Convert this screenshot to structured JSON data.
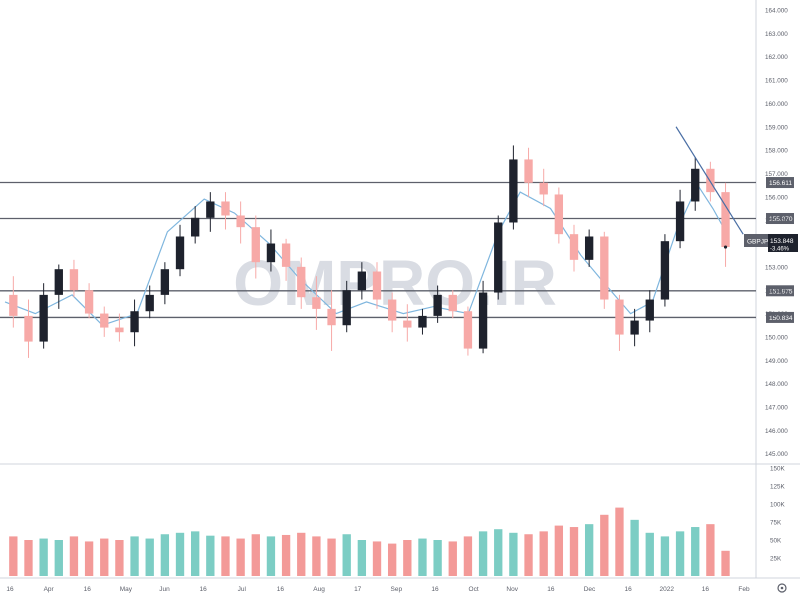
{
  "watermark": "OMPRO.IR",
  "symbol_badge": {
    "symbol": "GBPJPY",
    "price": "153.848",
    "change": "-3.46%"
  },
  "colors": {
    "up": "#1e222d",
    "down": "#f7a9a7",
    "ma": "#7fb6de",
    "trendline": "#4a6fa5",
    "hline": "#5d606b",
    "volume_up": "#7ccdc4",
    "volume_down": "#f39a98",
    "axis_text": "#5d606b",
    "label_bg": "#5d606b",
    "label_text": "#ffffff",
    "watermark": "#d9dce3"
  },
  "axes": {
    "price_ticks": [
      "164.000",
      "163.000",
      "162.000",
      "161.000",
      "160.000",
      "159.000",
      "158.000",
      "157.000",
      "156.000",
      "155.000",
      "154.000",
      "153.000",
      "152.000",
      "151.000",
      "150.000",
      "149.000",
      "148.000",
      "147.000",
      "146.000",
      "145.000"
    ],
    "volume_ticks": [
      "150K",
      "125K",
      "100K",
      "75K",
      "50K",
      "25K"
    ],
    "time_ticks": [
      "16",
      "Apr",
      "16",
      "May",
      "Jun",
      "16",
      "Jul",
      "16",
      "Aug",
      "17",
      "Sep",
      "16",
      "Oct",
      "Nov",
      "16",
      "Dec",
      "16",
      "2022",
      "16",
      "Feb"
    ]
  },
  "levels": [
    {
      "value": 156.611,
      "label": "156.611"
    },
    {
      "value": 155.07,
      "label": "155.070"
    },
    {
      "value": 151.975,
      "label": "151.975"
    },
    {
      "value": 150.834,
      "label": "150.834"
    }
  ],
  "icons": {
    "settings": "settings-icon"
  },
  "chart_data": {
    "type": "candlestick",
    "title": "",
    "symbol": "GBPJPY",
    "ylim": [
      144.6,
      164.0
    ],
    "volume_ylim": [
      0,
      150000
    ],
    "x_range": [
      "2021-03-01",
      "2022-02-10"
    ],
    "last_price": 153.848,
    "change_percent": -3.46,
    "horizontal_levels": [
      156.611,
      155.07,
      151.975,
      150.834
    ],
    "trendline": {
      "from": [
        "2022-01-05",
        159.0
      ],
      "to": [
        "2022-02-05",
        154.4
      ]
    },
    "moving_average_waypoints": [
      {
        "date": "2021-03-01",
        "value": 151.5
      },
      {
        "date": "2021-03-15",
        "value": 151.0
      },
      {
        "date": "2021-04-01",
        "value": 151.8
      },
      {
        "date": "2021-04-15",
        "value": 150.5
      },
      {
        "date": "2021-05-01",
        "value": 151.0
      },
      {
        "date": "2021-05-15",
        "value": 154.5
      },
      {
        "date": "2021-06-01",
        "value": 155.9
      },
      {
        "date": "2021-06-15",
        "value": 155.3
      },
      {
        "date": "2021-07-01",
        "value": 154.0
      },
      {
        "date": "2021-07-15",
        "value": 152.5
      },
      {
        "date": "2021-08-01",
        "value": 151.0
      },
      {
        "date": "2021-08-15",
        "value": 151.5
      },
      {
        "date": "2021-09-01",
        "value": 151.0
      },
      {
        "date": "2021-09-15",
        "value": 151.3
      },
      {
        "date": "2021-10-01",
        "value": 151.0
      },
      {
        "date": "2021-10-15",
        "value": 154.5
      },
      {
        "date": "2021-10-25",
        "value": 156.2
      },
      {
        "date": "2021-11-08",
        "value": 155.5
      },
      {
        "date": "2021-11-22",
        "value": 153.5
      },
      {
        "date": "2021-12-01",
        "value": 152.5
      },
      {
        "date": "2021-12-15",
        "value": 151.0
      },
      {
        "date": "2021-12-25",
        "value": 151.5
      },
      {
        "date": "2022-01-05",
        "value": 154.5
      },
      {
        "date": "2022-01-15",
        "value": 156.5
      },
      {
        "date": "2022-01-22",
        "value": 155.5
      },
      {
        "date": "2022-01-28",
        "value": 154.5
      }
    ],
    "ohlc_weekly_estimate": [
      {
        "date": "2021-03-01",
        "open": 151.8,
        "high": 152.6,
        "low": 150.4,
        "close": 150.9
      },
      {
        "date": "2021-03-08",
        "open": 150.9,
        "high": 151.6,
        "low": 149.1,
        "close": 149.8
      },
      {
        "date": "2021-03-15",
        "open": 149.8,
        "high": 152.3,
        "low": 149.5,
        "close": 151.8
      },
      {
        "date": "2021-03-22",
        "open": 151.8,
        "high": 153.1,
        "low": 151.2,
        "close": 152.9
      },
      {
        "date": "2021-03-29",
        "open": 152.9,
        "high": 153.3,
        "low": 151.7,
        "close": 152.0
      },
      {
        "date": "2021-04-05",
        "open": 152.0,
        "high": 152.3,
        "low": 150.8,
        "close": 151.0
      },
      {
        "date": "2021-04-12",
        "open": 151.0,
        "high": 151.3,
        "low": 150.0,
        "close": 150.4
      },
      {
        "date": "2021-04-19",
        "open": 150.4,
        "high": 151.0,
        "low": 149.8,
        "close": 150.2
      },
      {
        "date": "2021-04-26",
        "open": 150.2,
        "high": 151.6,
        "low": 149.6,
        "close": 151.1
      },
      {
        "date": "2021-05-03",
        "open": 151.1,
        "high": 152.2,
        "low": 150.8,
        "close": 151.8
      },
      {
        "date": "2021-05-10",
        "open": 151.8,
        "high": 153.2,
        "low": 151.4,
        "close": 152.9
      },
      {
        "date": "2021-05-17",
        "open": 152.9,
        "high": 154.8,
        "low": 152.6,
        "close": 154.3
      },
      {
        "date": "2021-05-24",
        "open": 154.3,
        "high": 155.6,
        "low": 154.0,
        "close": 155.1
      },
      {
        "date": "2021-05-31",
        "open": 155.1,
        "high": 156.2,
        "low": 154.5,
        "close": 155.8
      },
      {
        "date": "2021-06-07",
        "open": 155.8,
        "high": 156.2,
        "low": 154.6,
        "close": 155.2
      },
      {
        "date": "2021-06-14",
        "open": 155.2,
        "high": 155.8,
        "low": 154.0,
        "close": 154.7
      },
      {
        "date": "2021-06-21",
        "open": 154.7,
        "high": 155.2,
        "low": 152.5,
        "close": 153.2
      },
      {
        "date": "2021-06-28",
        "open": 153.2,
        "high": 154.6,
        "low": 152.8,
        "close": 154.0
      },
      {
        "date": "2021-07-05",
        "open": 154.0,
        "high": 154.2,
        "low": 152.4,
        "close": 153.0
      },
      {
        "date": "2021-07-12",
        "open": 153.0,
        "high": 153.4,
        "low": 151.2,
        "close": 151.7
      },
      {
        "date": "2021-07-19",
        "open": 151.7,
        "high": 152.6,
        "low": 150.3,
        "close": 151.2
      },
      {
        "date": "2021-07-26",
        "open": 151.2,
        "high": 152.0,
        "low": 149.4,
        "close": 150.5
      },
      {
        "date": "2021-08-02",
        "open": 150.5,
        "high": 152.4,
        "low": 150.2,
        "close": 152.0
      },
      {
        "date": "2021-08-09",
        "open": 152.0,
        "high": 153.2,
        "low": 151.6,
        "close": 152.8
      },
      {
        "date": "2021-08-16",
        "open": 152.8,
        "high": 153.2,
        "low": 151.2,
        "close": 151.6
      },
      {
        "date": "2021-08-23",
        "open": 151.6,
        "high": 151.9,
        "low": 150.2,
        "close": 150.7
      },
      {
        "date": "2021-08-30",
        "open": 150.7,
        "high": 151.4,
        "low": 149.8,
        "close": 150.4
      },
      {
        "date": "2021-09-06",
        "open": 150.4,
        "high": 151.2,
        "low": 150.1,
        "close": 150.9
      },
      {
        "date": "2021-09-13",
        "open": 150.9,
        "high": 152.2,
        "low": 150.6,
        "close": 151.8
      },
      {
        "date": "2021-09-20",
        "open": 151.8,
        "high": 152.0,
        "low": 150.8,
        "close": 151.1
      },
      {
        "date": "2021-09-27",
        "open": 151.1,
        "high": 151.3,
        "low": 149.2,
        "close": 149.5
      },
      {
        "date": "2021-10-04",
        "open": 149.5,
        "high": 152.4,
        "low": 149.3,
        "close": 151.9
      },
      {
        "date": "2021-10-11",
        "open": 151.9,
        "high": 155.2,
        "low": 151.6,
        "close": 154.9
      },
      {
        "date": "2021-10-18",
        "open": 154.9,
        "high": 158.2,
        "low": 154.6,
        "close": 157.6
      },
      {
        "date": "2021-10-25",
        "open": 157.6,
        "high": 158.1,
        "low": 156.0,
        "close": 156.6
      },
      {
        "date": "2021-11-01",
        "open": 156.6,
        "high": 157.2,
        "low": 155.6,
        "close": 156.1
      },
      {
        "date": "2021-11-08",
        "open": 156.1,
        "high": 156.4,
        "low": 154.0,
        "close": 154.4
      },
      {
        "date": "2021-11-15",
        "open": 154.4,
        "high": 154.8,
        "low": 152.8,
        "close": 153.3
      },
      {
        "date": "2021-11-22",
        "open": 153.3,
        "high": 154.6,
        "low": 153.0,
        "close": 154.3
      },
      {
        "date": "2021-11-29",
        "open": 154.3,
        "high": 154.5,
        "low": 151.2,
        "close": 151.6
      },
      {
        "date": "2021-12-06",
        "open": 151.6,
        "high": 151.8,
        "low": 149.4,
        "close": 150.1
      },
      {
        "date": "2021-12-13",
        "open": 150.1,
        "high": 151.2,
        "low": 149.6,
        "close": 150.7
      },
      {
        "date": "2021-12-20",
        "open": 150.7,
        "high": 152.0,
        "low": 150.2,
        "close": 151.6
      },
      {
        "date": "2021-12-27",
        "open": 151.6,
        "high": 154.4,
        "low": 151.3,
        "close": 154.1
      },
      {
        "date": "2022-01-03",
        "open": 154.1,
        "high": 156.3,
        "low": 153.8,
        "close": 155.8
      },
      {
        "date": "2022-01-10",
        "open": 155.8,
        "high": 157.7,
        "low": 155.4,
        "close": 157.2
      },
      {
        "date": "2022-01-17",
        "open": 157.2,
        "high": 157.5,
        "low": 155.8,
        "close": 156.2
      },
      {
        "date": "2022-01-24",
        "open": 156.2,
        "high": 156.6,
        "low": 153.0,
        "close": 153.85
      }
    ],
    "volume_weekly_estimate": [
      55000,
      50000,
      52000,
      50000,
      55000,
      48000,
      52000,
      50000,
      55000,
      52000,
      58000,
      60000,
      62000,
      56000,
      55000,
      52000,
      58000,
      55000,
      57000,
      60000,
      55000,
      52000,
      58000,
      50000,
      48000,
      45000,
      50000,
      52000,
      50000,
      48000,
      55000,
      62000,
      65000,
      60000,
      58000,
      62000,
      70000,
      68000,
      72000,
      85000,
      95000,
      78000,
      60000,
      55000,
      62000,
      68000,
      72000,
      35000
    ]
  }
}
